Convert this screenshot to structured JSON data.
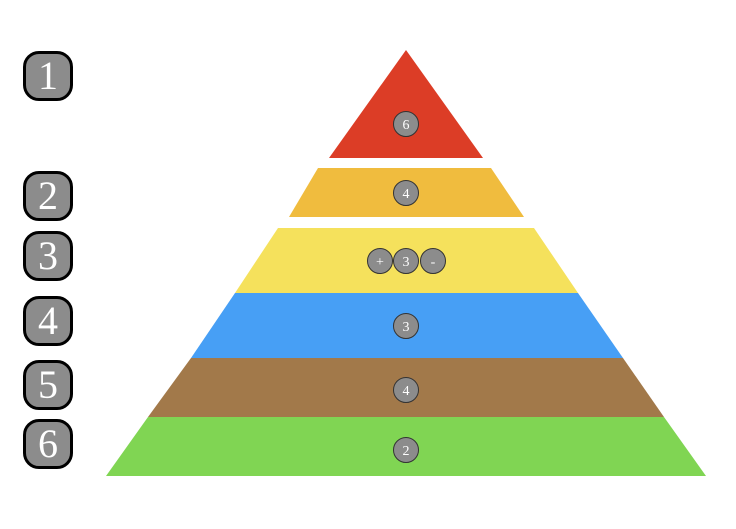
{
  "levels": [
    "1",
    "2",
    "3",
    "4",
    "5",
    "6"
  ],
  "tiers": [
    {
      "color": "#dc3d26",
      "value": "6"
    },
    {
      "color": "#f0bc3e",
      "value": "4"
    },
    {
      "color": "#f5e15c",
      "value": "3",
      "plus_label": "+",
      "minus_label": "-"
    },
    {
      "color": "#479ff5",
      "value": "3"
    },
    {
      "color": "#a2794a",
      "value": "4"
    },
    {
      "color": "#80d553",
      "value": "2"
    }
  ],
  "colors": {
    "badge_fill": "#8c8c8c",
    "circle_fill": "#8c8c8c"
  }
}
